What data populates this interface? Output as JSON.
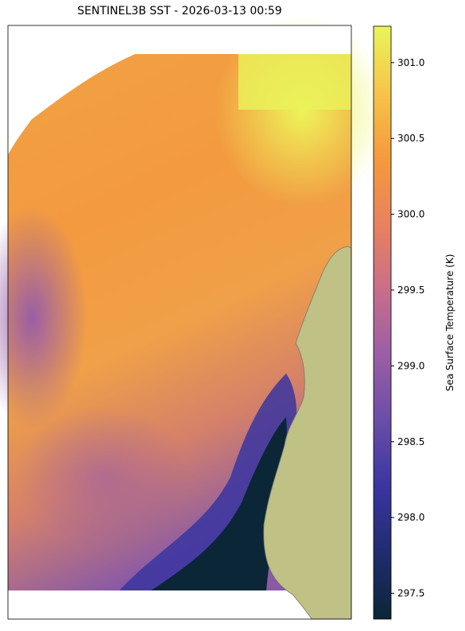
{
  "title": "SENTINEL3B SST - 2026-03-13 00:59",
  "colorbar": {
    "label": "Sea Surface Temperature (K)",
    "lim": [
      297.33,
      301.24
    ],
    "ticks": [
      297.5,
      {
        "value": 298,
        "label": "298.0"
      },
      298.5,
      {
        "value": 299,
        "label": "299.0"
      },
      299.5,
      {
        "value": 300,
        "label": "300.0"
      },
      300.5,
      {
        "value": 301,
        "label": "301.0"
      }
    ],
    "colors": [
      "#0b2637",
      "#1f2c6e",
      "#3a35a0",
      "#6a4da8",
      "#9a5ea6",
      "#c86e8a",
      "#e8825e",
      "#f59a3c",
      "#f7c44a",
      "#e8f55a"
    ]
  }
}
